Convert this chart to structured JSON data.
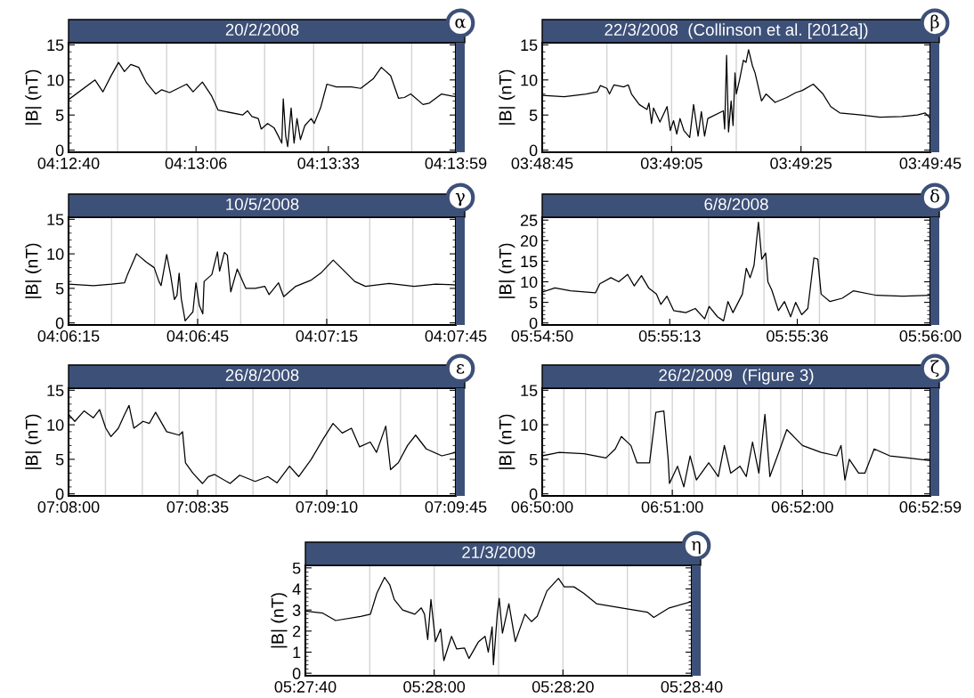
{
  "chart_data": [
    {
      "type": "line",
      "title": "20/2/2008",
      "ylabel": "|B| (nT)",
      "annotations": [
        "α"
      ],
      "color": "#000000",
      "x": [
        "2008-02-20T04:12:40",
        "2008-02-20T04:12:45.4",
        "2008-02-20T04:12:47",
        "2008-02-20T04:12:48.6",
        "2008-02-20T04:12:50.2",
        "2008-02-20T04:12:51.4",
        "2008-02-20T04:12:52.7",
        "2008-02-20T04:12:54.3",
        "2008-02-20T04:12:55.9",
        "2008-02-20T04:12:57.8",
        "2008-02-20T04:12:59",
        "2008-02-20T04:13:00.6",
        "2008-02-20T04:13:04.1",
        "2008-02-20T04:13:05.4",
        "2008-02-20T04:13:07.3",
        "2008-02-20T04:13:09.2",
        "2008-02-20T04:13:10.5",
        "2008-02-20T04:13:15.5",
        "2008-02-20T04:13:16.5",
        "2008-02-20T04:13:17.4",
        "2008-02-20T04:13:18.7",
        "2008-02-20T04:13:19.3",
        "2008-02-20T04:13:20.6",
        "2008-02-20T04:13:21.9",
        "2008-02-20T04:13:22.8",
        "2008-02-20T04:13:23.5",
        "2008-02-20T04:13:23.8",
        "2008-02-20T04:13:24.3",
        "2008-02-20T04:13:24.7",
        "2008-02-20T04:13:25.4",
        "2008-02-20T04:13:26",
        "2008-02-20T04:13:26.6",
        "2008-02-20T04:13:27.3",
        "2008-02-20T04:13:28.2",
        "2008-02-20T04:13:29.5",
        "2008-02-20T04:13:30.1",
        "2008-02-20T04:13:31.4",
        "2008-02-20T04:13:32.7",
        "2008-02-20T04:13:34.6",
        "2008-02-20T04:13:37.7",
        "2008-02-20T04:13:39.6",
        "2008-02-20T04:13:42.2",
        "2008-02-20T04:13:43.8",
        "2008-02-20T04:13:45.7",
        "2008-02-20T04:13:47.3",
        "2008-02-20T04:13:48.5",
        "2008-02-20T04:13:49.8",
        "2008-02-20T04:13:52.3",
        "2008-02-20T04:13:53.6",
        "2008-02-20T04:13:56.1",
        "2008-02-20T04:13:59"
      ],
      "values": [
        7.2,
        10,
        8.3,
        10.5,
        12.5,
        11.2,
        12.2,
        11.8,
        9.6,
        8,
        8.6,
        8.2,
        9.4,
        8.3,
        9.7,
        7.7,
        5.7,
        5,
        5.6,
        4.8,
        4.5,
        3,
        3.8,
        3.2,
        2,
        1,
        7.3,
        2,
        0.5,
        6,
        1,
        4.5,
        1.5,
        3.5,
        4.5,
        3.8,
        6,
        9.4,
        9,
        9,
        8.8,
        10.2,
        11.8,
        10.6,
        7.4,
        7.5,
        8,
        6.5,
        6.7,
        8,
        7.6
      ],
      "xlim": [
        "2008-02-20T04:12:40",
        "2008-02-20T04:13:59"
      ],
      "xticks": [
        {
          "value": "2008-02-20T04:12:40",
          "label": "04:12:40"
        },
        {
          "value": "2008-02-20T04:13:06",
          "label": "04:13:06"
        },
        {
          "value": "2008-02-20T04:13:33",
          "label": "04:13:33"
        },
        {
          "value": "2008-02-20T04:13:59",
          "label": "04:13:59"
        }
      ],
      "ylim": [
        -0.3,
        15.3
      ],
      "yticks": [
        0,
        5,
        10,
        15
      ],
      "ref_lines": [
        {
          "axis": "x",
          "value": "2008-02-20T04:12:50",
          "color": "#d3d3d3"
        },
        {
          "axis": "x",
          "value": "2008-02-20T04:13:00",
          "color": "#d3d3d3"
        },
        {
          "axis": "x",
          "value": "2008-02-20T04:13:10",
          "color": "#d3d3d3"
        },
        {
          "axis": "x",
          "value": "2008-02-20T04:13:20",
          "color": "#d3d3d3"
        },
        {
          "axis": "x",
          "value": "2008-02-20T04:13:30",
          "color": "#d3d3d3"
        },
        {
          "axis": "x",
          "value": "2008-02-20T04:13:40",
          "color": "#d3d3d3"
        },
        {
          "axis": "x",
          "value": "2008-02-20T04:13:50",
          "color": "#d3d3d3"
        }
      ]
    },
    {
      "type": "line",
      "title": "22/3/2008  (Collinson et al. [2012a])",
      "ylabel": "|B| (nT)",
      "annotations": [
        "β"
      ],
      "color": "#000000",
      "x": [
        "2008-03-22T03:48:45",
        "2008-03-22T03:48:48.4",
        "2008-03-22T03:48:51.8",
        "2008-03-22T03:48:53.5",
        "2008-03-22T03:48:54",
        "2008-03-22T03:48:55",
        "2008-03-22T03:48:55.4",
        "2008-03-22T03:48:56.1",
        "2008-03-22T03:48:57.6",
        "2008-03-22T03:48:58.3",
        "2008-03-22T03:48:58.8",
        "2008-03-22T03:49:00",
        "2008-03-22T03:49:01.2",
        "2008-03-22T03:49:01.5",
        "2008-03-22T03:49:01.9",
        "2008-03-22T03:49:02.2",
        "2008-03-22T03:49:03.2",
        "2008-03-22T03:49:04.3",
        "2008-03-22T03:49:04.8",
        "2008-03-22T03:49:05.3",
        "2008-03-22T03:49:05.8",
        "2008-03-22T03:49:06.3",
        "2008-03-22T03:49:06.9",
        "2008-03-22T03:49:07.8",
        "2008-03-22T03:49:08.4",
        "2008-03-22T03:49:09.1",
        "2008-03-22T03:49:09.6",
        "2008-03-22T03:49:10.1",
        "2008-03-22T03:49:10.6",
        "2008-03-22T03:49:13",
        "2008-03-22T03:49:13.2",
        "2008-03-22T03:49:13.5",
        "2008-03-22T03:49:13.8",
        "2008-03-22T03:49:14.2",
        "2008-03-22T03:49:14.5",
        "2008-03-22T03:49:14.8",
        "2008-03-22T03:49:15",
        "2008-03-22T03:49:15.5",
        "2008-03-22T03:49:16.1",
        "2008-03-22T03:49:16.5",
        "2008-03-22T03:49:16.9",
        "2008-03-22T03:49:17.5",
        "2008-03-22T03:49:17.9",
        "2008-03-22T03:49:18.9",
        "2008-03-22T03:49:19.6",
        "2008-03-22T03:49:21",
        "2008-03-22T03:49:22.8",
        "2008-03-22T03:49:24.2",
        "2008-03-22T03:49:25.2",
        "2008-03-22T03:49:26.9",
        "2008-03-22T03:49:28.4",
        "2008-03-22T03:49:29.6",
        "2008-03-22T03:49:31",
        "2008-03-22T03:49:34.3",
        "2008-03-22T03:49:37.2",
        "2008-03-22T03:49:40.6",
        "2008-03-22T03:49:43",
        "2008-03-22T03:49:44.2",
        "2008-03-22T03:49:45"
      ],
      "values": [
        7.8,
        7.6,
        8.0,
        8.3,
        9.2,
        8.8,
        8.0,
        9.3,
        9.0,
        9.3,
        8.0,
        6.5,
        5.8,
        6.7,
        3.8,
        6,
        4,
        6.2,
        2.8,
        4.2,
        2.3,
        4.5,
        2.8,
        1.8,
        6.5,
        2,
        5.5,
        2,
        4.5,
        5.6,
        3,
        13.5,
        2.6,
        7,
        3.5,
        11,
        8,
        10,
        12.8,
        12.5,
        14.3,
        12,
        11,
        7,
        8,
        6.8,
        7.5,
        8.2,
        8.5,
        9.4,
        8,
        6.2,
        5.3,
        5.0,
        4.7,
        4.8,
        5.0,
        5.3,
        4.5
      ],
      "xlim": [
        "2008-03-22T03:48:45",
        "2008-03-22T03:49:45"
      ],
      "xticks": [
        {
          "value": "2008-03-22T03:48:45",
          "label": "03:48:45"
        },
        {
          "value": "2008-03-22T03:49:05",
          "label": "03:49:05"
        },
        {
          "value": "2008-03-22T03:49:25",
          "label": "03:49:25"
        },
        {
          "value": "2008-03-22T03:49:45",
          "label": "03:49:45"
        }
      ],
      "ylim": [
        -0.3,
        15.3
      ],
      "yticks": [
        0,
        5,
        10,
        15
      ],
      "ref_lines": [
        {
          "axis": "x",
          "value": "2008-03-22T03:48:55",
          "color": "#d3d3d3"
        },
        {
          "axis": "x",
          "value": "2008-03-22T03:49:05",
          "color": "#d3d3d3"
        },
        {
          "axis": "x",
          "value": "2008-03-22T03:49:15",
          "color": "#d3d3d3"
        },
        {
          "axis": "x",
          "value": "2008-03-22T03:49:25",
          "color": "#d3d3d3"
        },
        {
          "axis": "x",
          "value": "2008-03-22T03:49:35",
          "color": "#d3d3d3"
        }
      ]
    },
    {
      "type": "line",
      "title": "10/5/2008",
      "ylabel": "|B| (nT)",
      "annotations": [
        "γ"
      ],
      "color": "#000000",
      "x": [
        "2008-05-10T04:06:15",
        "2008-05-10T04:06:20.8",
        "2008-05-10T04:06:25.1",
        "2008-05-10T04:06:28",
        "2008-05-10T04:06:28.7",
        "2008-05-10T04:06:30.8",
        "2008-05-10T04:06:33.1",
        "2008-05-10T04:06:34.9",
        "2008-05-10T04:06:36",
        "2008-05-10T04:06:36.5",
        "2008-05-10T04:06:37.8",
        "2008-05-10T04:06:38.7",
        "2008-05-10T04:06:39.6",
        "2008-05-10T04:06:40.2",
        "2008-05-10T04:06:40.7",
        "2008-05-10T04:06:41.2",
        "2008-05-10T04:06:42.1",
        "2008-05-10T04:06:43.2",
        "2008-05-10T04:06:43.9",
        "2008-05-10T04:06:44.6",
        "2008-05-10T04:06:45.4",
        "2008-05-10T04:06:46.2",
        "2008-05-10T04:06:46.5",
        "2008-05-10T04:06:48.3",
        "2008-05-10T04:06:49.6",
        "2008-05-10T04:06:50.1",
        "2008-05-10T04:06:51.2",
        "2008-05-10T04:06:51.9",
        "2008-05-10T04:06:52.7",
        "2008-05-10T04:06:54.2",
        "2008-05-10T04:06:56.2",
        "2008-05-10T04:06:58.4",
        "2008-05-10T04:07:00.6",
        "2008-05-10T04:07:01.6",
        "2008-05-10T04:07:03.8",
        "2008-05-10T04:07:05",
        "2008-05-10T04:07:07.8",
        "2008-05-10T04:07:11.4",
        "2008-05-10T04:07:13.6",
        "2008-05-10T04:07:16.5",
        "2008-05-10T04:07:18.6",
        "2008-05-10T04:07:21.5",
        "2008-05-10T04:07:24",
        "2008-05-10T04:07:29.5",
        "2008-05-10T04:07:35.3",
        "2008-05-10T04:07:40.3",
        "2008-05-10T04:07:45"
      ],
      "values": [
        5.6,
        5.4,
        5.6,
        5.8,
        7,
        10,
        8.8,
        8,
        6,
        5.4,
        9.9,
        7,
        3.4,
        4,
        7.2,
        3.5,
        0.3,
        1.1,
        1.6,
        5.8,
        2.5,
        1.3,
        6,
        7,
        10.3,
        7.5,
        10.2,
        9.8,
        4.5,
        7.8,
        5,
        5,
        5.3,
        4.1,
        5.8,
        3.8,
        5.3,
        6.2,
        7.2,
        9.1,
        7.8,
        6,
        5.3,
        5.7,
        5.3,
        5.6,
        5.5
      ],
      "xlim": [
        "2008-05-10T04:06:15",
        "2008-05-10T04:07:45"
      ],
      "xticks": [
        {
          "value": "2008-05-10T04:06:15",
          "label": "04:06:15"
        },
        {
          "value": "2008-05-10T04:06:45",
          "label": "04:06:45"
        },
        {
          "value": "2008-05-10T04:07:15",
          "label": "04:07:15"
        },
        {
          "value": "2008-05-10T04:07:45",
          "label": "04:07:45"
        }
      ],
      "ylim": [
        -0.3,
        15.3
      ],
      "yticks": [
        0,
        5,
        10,
        15
      ],
      "ref_lines": [
        {
          "axis": "x",
          "value": "2008-05-10T04:06:25",
          "color": "#d3d3d3"
        },
        {
          "axis": "x",
          "value": "2008-05-10T04:06:35",
          "color": "#d3d3d3"
        },
        {
          "axis": "x",
          "value": "2008-05-10T04:06:45",
          "color": "#d3d3d3"
        },
        {
          "axis": "x",
          "value": "2008-05-10T04:06:55",
          "color": "#d3d3d3"
        },
        {
          "axis": "x",
          "value": "2008-05-10T04:07:05",
          "color": "#d3d3d3"
        },
        {
          "axis": "x",
          "value": "2008-05-10T04:07:15",
          "color": "#d3d3d3"
        },
        {
          "axis": "x",
          "value": "2008-05-10T04:07:25",
          "color": "#d3d3d3"
        },
        {
          "axis": "x",
          "value": "2008-05-10T04:07:35",
          "color": "#d3d3d3"
        }
      ]
    },
    {
      "type": "line",
      "title": "6/8/2008",
      "ylabel": "|B| (nT)",
      "annotations": [
        "δ"
      ],
      "color": "#000000",
      "x": [
        "2008-08-06T05:54:50",
        "2008-08-06T05:54:52.3",
        "2008-08-06T05:54:55.1",
        "2008-08-06T05:54:59.6",
        "2008-08-06T05:55:00.4",
        "2008-08-06T05:55:02.4",
        "2008-08-06T05:55:03.8",
        "2008-08-06T05:55:05.4",
        "2008-08-06T05:55:06.6",
        "2008-08-06T05:55:07.9",
        "2008-08-06T05:55:09.2",
        "2008-08-06T05:55:10.6",
        "2008-08-06T05:55:11.4",
        "2008-08-06T05:55:12.5",
        "2008-08-06T05:55:13.7",
        "2008-08-06T05:55:15.9",
        "2008-08-06T05:55:17.6",
        "2008-08-06T05:55:19.3",
        "2008-08-06T05:55:20.1",
        "2008-08-06T05:55:21.6",
        "2008-08-06T05:55:22.7",
        "2008-08-06T05:55:23.5",
        "2008-08-06T05:55:24.4",
        "2008-08-06T05:55:26.1",
        "2008-08-06T05:55:26.8",
        "2008-08-06T05:55:27.5",
        "2008-08-06T05:55:28.2",
        "2008-08-06T05:55:29",
        "2008-08-06T05:55:29.6",
        "2008-08-06T05:55:30.3",
        "2008-08-06T05:55:30.7",
        "2008-08-06T05:55:31.4",
        "2008-08-06T05:55:32.6",
        "2008-08-06T05:55:33.7",
        "2008-08-06T05:55:34.8",
        "2008-08-06T05:55:35.7",
        "2008-08-06T05:55:36.8",
        "2008-08-06T05:55:37.9",
        "2008-08-06T05:55:39",
        "2008-08-06T05:55:39.7",
        "2008-08-06T05:55:40.3",
        "2008-08-06T05:55:41.9",
        "2008-08-06T05:55:44.1",
        "2008-08-06T05:55:46.1",
        "2008-08-06T05:55:50.3",
        "2008-08-06T05:55:54.8",
        "2008-08-06T05:56:00"
      ],
      "values": [
        7.5,
        8.5,
        7.8,
        7.3,
        9.5,
        11,
        10,
        11.8,
        9,
        11.5,
        8.5,
        7,
        4.5,
        6.5,
        3,
        2.5,
        3.5,
        1,
        4,
        1.5,
        0.5,
        5.2,
        2.5,
        7,
        13.3,
        11,
        14,
        24.5,
        15.5,
        17,
        10,
        8,
        3,
        5.2,
        1.5,
        5,
        2,
        3.5,
        15.8,
        15.5,
        7,
        5.2,
        6,
        7.8,
        6.7,
        6.5,
        6.7
      ],
      "xlim": [
        "2008-08-06T05:54:50",
        "2008-08-06T05:56:00"
      ],
      "xticks": [
        {
          "value": "2008-08-06T05:54:50",
          "label": "05:54:50"
        },
        {
          "value": "2008-08-06T05:55:13",
          "label": "05:55:13"
        },
        {
          "value": "2008-08-06T05:55:36",
          "label": "05:55:36"
        },
        {
          "value": "2008-08-06T05:56:00",
          "label": "05:56:00"
        }
      ],
      "ylim": [
        -0.5,
        25.7
      ],
      "yticks": [
        0,
        5,
        10,
        15,
        20,
        25
      ],
      "ref_lines": [
        {
          "axis": "x",
          "value": "2008-08-06T05:55:00",
          "color": "#d3d3d3"
        },
        {
          "axis": "x",
          "value": "2008-08-06T05:55:10",
          "color": "#d3d3d3"
        },
        {
          "axis": "x",
          "value": "2008-08-06T05:55:20",
          "color": "#d3d3d3"
        },
        {
          "axis": "x",
          "value": "2008-08-06T05:55:30",
          "color": "#d3d3d3"
        },
        {
          "axis": "x",
          "value": "2008-08-06T05:55:40",
          "color": "#d3d3d3"
        },
        {
          "axis": "x",
          "value": "2008-08-06T05:55:50",
          "color": "#d3d3d3"
        }
      ]
    },
    {
      "type": "line",
      "title": "26/8/2008",
      "ylabel": "|B| (nT)",
      "annotations": [
        "ε"
      ],
      "color": "#000000",
      "x": [
        "2008-08-26T07:08:00",
        "2008-08-26T07:08:01.7",
        "2008-08-26T07:08:04.2",
        "2008-08-26T07:08:06.7",
        "2008-08-26T07:08:08.4",
        "2008-08-26T07:08:10.1",
        "2008-08-26T07:08:11.5",
        "2008-08-26T07:08:13.5",
        "2008-08-26T07:08:15.2",
        "2008-08-26T07:08:16.4",
        "2008-08-26T07:08:17.7",
        "2008-08-26T07:08:20.2",
        "2008-08-26T07:08:21.9",
        "2008-08-26T07:08:23.6",
        "2008-08-26T07:08:26.6",
        "2008-08-26T07:08:30",
        "2008-08-26T07:08:30.9",
        "2008-08-26T07:08:31.7",
        "2008-08-26T07:08:33.7",
        "2008-08-26T07:08:36.3",
        "2008-08-26T07:08:37.9",
        "2008-08-26T07:08:39.6",
        "2008-08-26T07:08:43.8",
        "2008-08-26T07:08:46.4",
        "2008-08-26T07:08:50.6",
        "2008-08-26T07:08:54",
        "2008-08-26T07:08:56.5",
        "2008-08-26T07:08:59.9",
        "2008-08-26T07:09:02.4",
        "2008-08-26T07:09:05.8",
        "2008-08-26T07:09:09.1",
        "2008-08-26T07:09:11.7",
        "2008-08-26T07:09:14.2",
        "2008-08-26T07:09:16.7",
        "2008-08-26T07:09:18.9",
        "2008-08-26T07:09:21.8",
        "2008-08-26T07:09:23.5",
        "2008-08-26T07:09:26",
        "2008-08-26T07:09:27.3",
        "2008-08-26T07:09:29.4",
        "2008-08-26T07:09:31.9",
        "2008-08-26T07:09:34.1",
        "2008-08-26T07:09:37",
        "2008-08-26T07:09:41.2",
        "2008-08-26T07:09:45"
      ],
      "values": [
        11.5,
        10.5,
        12,
        11,
        12.2,
        9.5,
        8.3,
        9.5,
        11.5,
        12.8,
        9.5,
        10.5,
        10.2,
        11.8,
        9,
        8.5,
        9,
        4.5,
        3,
        1.5,
        2.5,
        2.8,
        1.5,
        2.7,
        1.8,
        2.5,
        1.6,
        4,
        2.5,
        5,
        8,
        10.2,
        8.8,
        9.5,
        6.8,
        7.5,
        6,
        9.8,
        3.5,
        4.5,
        7,
        8.5,
        6.5,
        5.5,
        6
      ],
      "xlim": [
        "2008-08-26T07:08:00",
        "2008-08-26T07:09:45"
      ],
      "xticks": [
        {
          "value": "2008-08-26T07:08:00",
          "label": "07:08:00"
        },
        {
          "value": "2008-08-26T07:08:35",
          "label": "07:08:35"
        },
        {
          "value": "2008-08-26T07:09:10",
          "label": "07:09:10"
        },
        {
          "value": "2008-08-26T07:09:45",
          "label": "07:09:45"
        }
      ],
      "ylim": [
        -0.3,
        15.3
      ],
      "yticks": [
        0,
        5,
        10,
        15
      ],
      "ref_lines": [
        {
          "axis": "x",
          "value": "2008-08-26T07:08:10",
          "color": "#d3d3d3"
        },
        {
          "axis": "x",
          "value": "2008-08-26T07:08:20",
          "color": "#d3d3d3"
        },
        {
          "axis": "x",
          "value": "2008-08-26T07:08:30",
          "color": "#d3d3d3"
        },
        {
          "axis": "x",
          "value": "2008-08-26T07:08:40",
          "color": "#d3d3d3"
        },
        {
          "axis": "x",
          "value": "2008-08-26T07:08:50",
          "color": "#d3d3d3"
        },
        {
          "axis": "x",
          "value": "2008-08-26T07:09:00",
          "color": "#d3d3d3"
        },
        {
          "axis": "x",
          "value": "2008-08-26T07:09:10",
          "color": "#d3d3d3"
        },
        {
          "axis": "x",
          "value": "2008-08-26T07:09:20",
          "color": "#d3d3d3"
        },
        {
          "axis": "x",
          "value": "2008-08-26T07:09:30",
          "color": "#d3d3d3"
        },
        {
          "axis": "x",
          "value": "2008-08-26T07:09:40",
          "color": "#d3d3d3"
        }
      ]
    },
    {
      "type": "line",
      "title": "26/2/2009  (Figure 3)",
      "ylabel": "|B| (nT)",
      "annotations": [
        "ζ"
      ],
      "color": "#000000",
      "x": [
        "2009-02-26T06:50:00",
        "2009-02-26T06:50:07.8",
        "2009-02-26T06:50:19.3",
        "2009-02-26T06:50:29.4",
        "2009-02-26T06:50:33.7",
        "2009-02-26T06:50:36.5",
        "2009-02-26T06:50:40.9",
        "2009-02-26T06:50:43.7",
        "2009-02-26T06:50:49.5",
        "2009-02-26T06:50:52.4",
        "2009-02-26T06:50:56.1",
        "2009-02-26T06:50:58.1",
        "2009-02-26T06:50:58.7",
        "2009-02-26T06:51:02.4",
        "2009-02-26T06:51:05.3",
        "2009-02-26T06:51:08.2",
        "2009-02-26T06:51:11.1",
        "2009-02-26T06:51:16.8",
        "2009-02-26T06:51:21.2",
        "2009-02-26T06:51:24",
        "2009-02-26T06:51:26.9",
        "2009-02-26T06:51:31.2",
        "2009-02-26T06:51:34.1",
        "2009-02-26T06:51:37",
        "2009-02-26T06:51:39.9",
        "2009-02-26T06:51:42.7",
        "2009-02-26T06:51:45",
        "2009-02-26T06:51:48.5",
        "2009-02-26T06:51:52.8",
        "2009-02-26T06:52:00",
        "2009-02-26T06:52:08.6",
        "2009-02-26T06:52:15.8",
        "2009-02-26T06:52:17.8",
        "2009-02-26T06:52:19.6",
        "2009-02-26T06:52:21.6",
        "2009-02-26T06:52:25.9",
        "2009-02-26T06:52:28.8",
        "2009-02-26T06:52:33.1",
        "2009-02-26T06:52:40.3",
        "2009-02-26T06:52:59"
      ],
      "values": [
        5.5,
        6,
        5.8,
        5.2,
        6.5,
        8.3,
        7,
        4.5,
        4.5,
        11.8,
        12,
        5,
        1.5,
        4,
        1,
        5.5,
        2,
        4.5,
        2.5,
        7,
        3,
        4,
        2.5,
        7.5,
        3,
        11.5,
        2.5,
        5.5,
        9.3,
        7,
        6,
        5.5,
        7,
        2,
        5,
        3,
        3,
        6.5,
        5.5,
        4.8
      ],
      "xlim": [
        "2009-02-26T06:50:00",
        "2009-02-26T06:52:59"
      ],
      "xticks": [
        {
          "value": "2009-02-26T06:50:00",
          "label": "06:50:00"
        },
        {
          "value": "2009-02-26T06:51:00",
          "label": "06:51:00"
        },
        {
          "value": "2009-02-26T06:52:00",
          "label": "06:52:00"
        },
        {
          "value": "2009-02-26T06:52:59",
          "label": "06:52:59"
        }
      ],
      "ylim": [
        -0.3,
        15.3
      ],
      "yticks": [
        0,
        5,
        10,
        15
      ],
      "ref_lines": [
        {
          "axis": "x",
          "value": "2009-02-26T06:50:10",
          "color": "#d3d3d3"
        },
        {
          "axis": "x",
          "value": "2009-02-26T06:50:20",
          "color": "#d3d3d3"
        },
        {
          "axis": "x",
          "value": "2009-02-26T06:50:30",
          "color": "#d3d3d3"
        },
        {
          "axis": "x",
          "value": "2009-02-26T06:50:40",
          "color": "#d3d3d3"
        },
        {
          "axis": "x",
          "value": "2009-02-26T06:50:50",
          "color": "#d3d3d3"
        },
        {
          "axis": "x",
          "value": "2009-02-26T06:51:00",
          "color": "#d3d3d3"
        },
        {
          "axis": "x",
          "value": "2009-02-26T06:51:10",
          "color": "#d3d3d3"
        },
        {
          "axis": "x",
          "value": "2009-02-26T06:51:20",
          "color": "#d3d3d3"
        },
        {
          "axis": "x",
          "value": "2009-02-26T06:51:30",
          "color": "#d3d3d3"
        },
        {
          "axis": "x",
          "value": "2009-02-26T06:51:40",
          "color": "#d3d3d3"
        },
        {
          "axis": "x",
          "value": "2009-02-26T06:51:50",
          "color": "#d3d3d3"
        },
        {
          "axis": "x",
          "value": "2009-02-26T06:52:00",
          "color": "#d3d3d3"
        },
        {
          "axis": "x",
          "value": "2009-02-26T06:52:10",
          "color": "#d3d3d3"
        },
        {
          "axis": "x",
          "value": "2009-02-26T06:52:20",
          "color": "#d3d3d3"
        },
        {
          "axis": "x",
          "value": "2009-02-26T06:52:30",
          "color": "#d3d3d3"
        },
        {
          "axis": "x",
          "value": "2009-02-26T06:52:40",
          "color": "#d3d3d3"
        },
        {
          "axis": "x",
          "value": "2009-02-26T06:52:50",
          "color": "#d3d3d3"
        }
      ]
    },
    {
      "type": "line",
      "title": "21/3/2009",
      "ylabel": "|B| (nT)",
      "annotations": [
        "η"
      ],
      "color": "#000000",
      "x": [
        "2009-03-21T05:27:40",
        "2009-03-21T05:27:42.7",
        "2009-03-21T05:27:44.7",
        "2009-03-21T05:27:48.6",
        "2009-03-21T05:27:50.1",
        "2009-03-21T05:27:51.1",
        "2009-03-21T05:27:52.3",
        "2009-03-21T05:27:53.1",
        "2009-03-21T05:27:53.8",
        "2009-03-21T05:27:55.1",
        "2009-03-21T05:27:57",
        "2009-03-21T05:27:58",
        "2009-03-21T05:27:58.5",
        "2009-03-21T05:27:59",
        "2009-03-21T05:27:59.5",
        "2009-03-21T05:28:00.2",
        "2009-03-21T05:28:01",
        "2009-03-21T05:28:01.5",
        "2009-03-21T05:28:02.7",
        "2009-03-21T05:28:03.5",
        "2009-03-21T05:28:04.7",
        "2009-03-21T05:28:05.4",
        "2009-03-21T05:28:06.9",
        "2009-03-21T05:28:07.9",
        "2009-03-21T05:28:08.4",
        "2009-03-21T05:28:09",
        "2009-03-21T05:28:09.2",
        "2009-03-21T05:28:09.8",
        "2009-03-21T05:28:10.1",
        "2009-03-21T05:28:10.6",
        "2009-03-21T05:28:11.6",
        "2009-03-21T05:28:12.6",
        "2009-03-21T05:28:14.1",
        "2009-03-21T05:28:15.1",
        "2009-03-21T05:28:16",
        "2009-03-21T05:28:17.5",
        "2009-03-21T05:28:19.3",
        "2009-03-21T05:28:20.2",
        "2009-03-21T05:28:21.7",
        "2009-03-21T05:28:23.2",
        "2009-03-21T05:28:25.2",
        "2009-03-21T05:28:29.1",
        "2009-03-21T05:28:33.1",
        "2009-03-21T05:28:34.1",
        "2009-03-21T05:28:36.5",
        "2009-03-21T05:28:40"
      ],
      "values": [
        2.95,
        2.85,
        2.5,
        2.7,
        2.8,
        3.8,
        4.55,
        4.2,
        3.5,
        3.0,
        2.8,
        3.1,
        2.8,
        1.6,
        3.5,
        1.5,
        2.1,
        0.6,
        1.75,
        1.15,
        1.2,
        0.7,
        1.5,
        1.75,
        1.0,
        2.2,
        0.4,
        2.8,
        3.55,
        1.9,
        3.3,
        1.5,
        2.8,
        2.45,
        2.7,
        3.9,
        4.5,
        4.1,
        4.1,
        3.8,
        3.3,
        3.1,
        2.9,
        2.65,
        3.1,
        3.4
      ],
      "xlim": [
        "2009-03-21T05:27:40",
        "2009-03-21T05:28:40"
      ],
      "xticks": [
        {
          "value": "2009-03-21T05:27:40",
          "label": "05:27:40"
        },
        {
          "value": "2009-03-21T05:28:00",
          "label": "05:28:00"
        },
        {
          "value": "2009-03-21T05:28:20",
          "label": "05:28:20"
        },
        {
          "value": "2009-03-21T05:28:40",
          "label": "05:28:40"
        }
      ],
      "ylim": [
        -0.12,
        5.12
      ],
      "yticks": [
        0,
        1,
        2,
        3,
        4,
        5
      ],
      "ref_lines": [
        {
          "axis": "x",
          "value": "2009-03-21T05:27:50",
          "color": "#d3d3d3"
        },
        {
          "axis": "x",
          "value": "2009-03-21T05:28:00",
          "color": "#d3d3d3"
        },
        {
          "axis": "x",
          "value": "2009-03-21T05:28:10",
          "color": "#d3d3d3"
        },
        {
          "axis": "x",
          "value": "2009-03-21T05:28:20",
          "color": "#d3d3d3"
        },
        {
          "axis": "x",
          "value": "2009-03-21T05:28:30",
          "color": "#d3d3d3"
        }
      ]
    }
  ]
}
